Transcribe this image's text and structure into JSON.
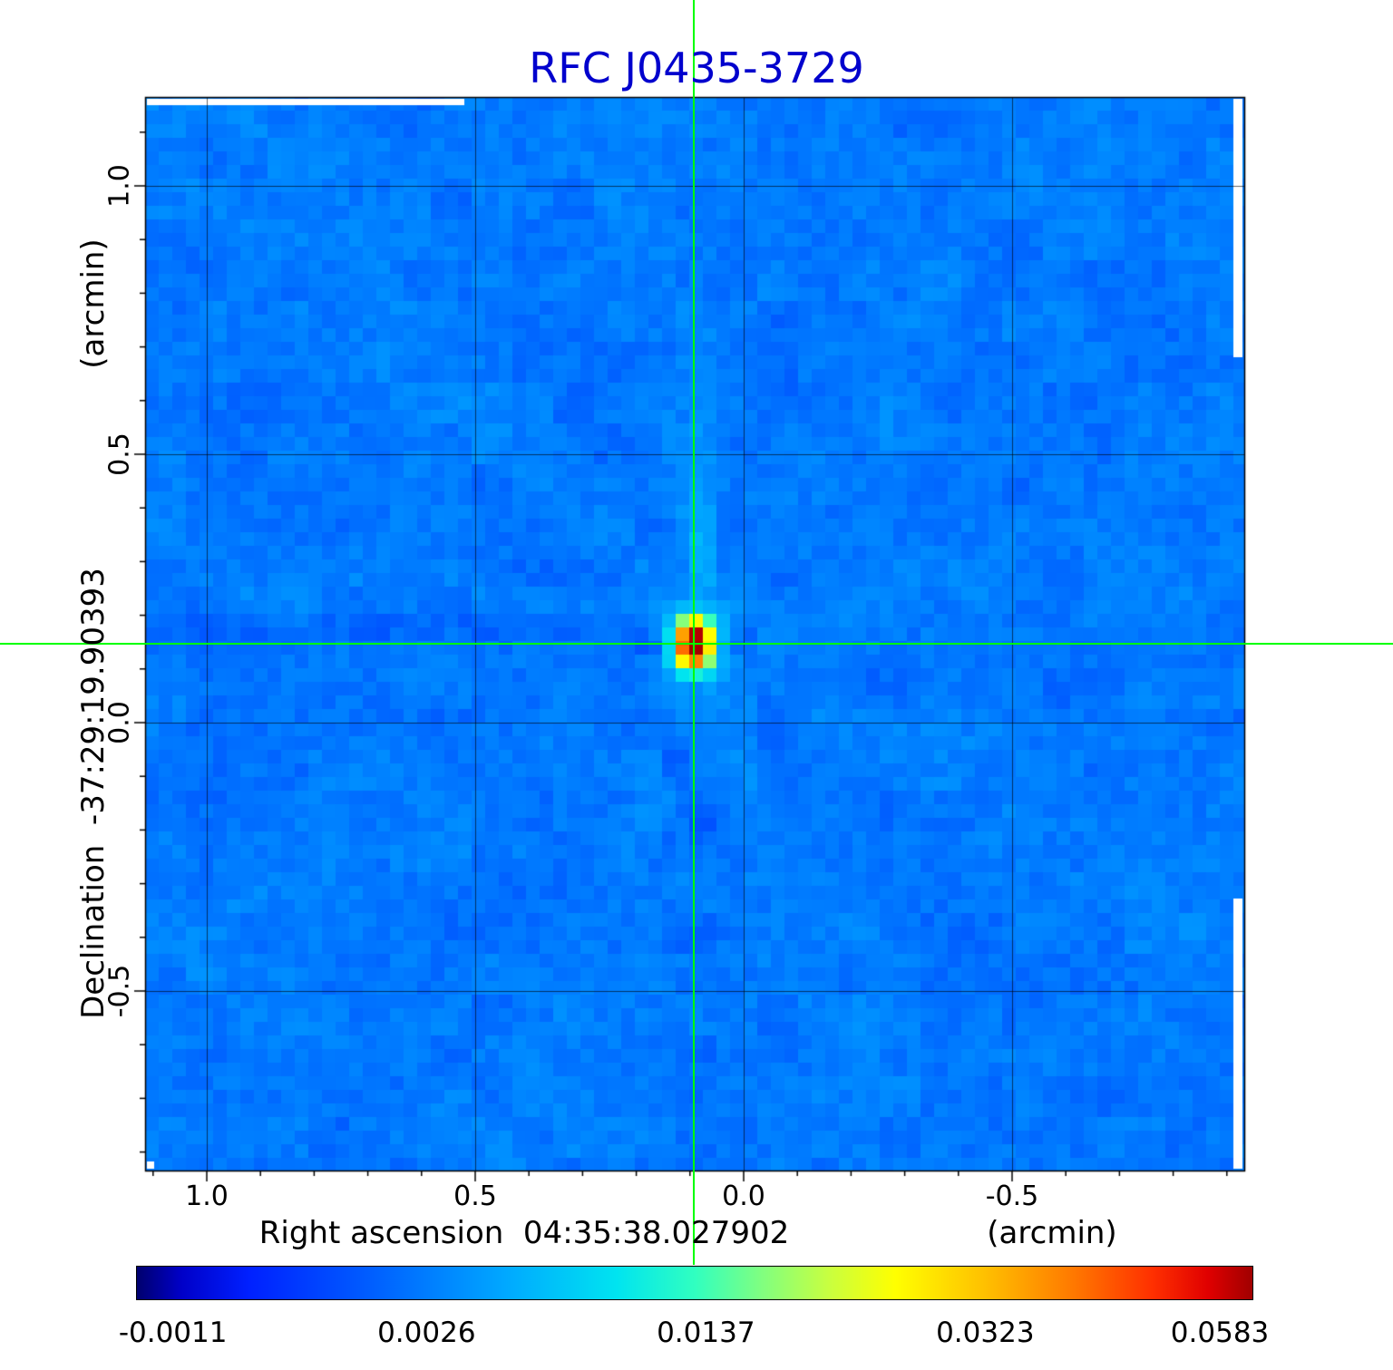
{
  "title": "RFC J0435-3729",
  "chart_data": {
    "type": "heatmap",
    "title": "RFC J0435-3729",
    "title_color": "#0000cd",
    "x_axis": {
      "label": "Right ascension  04:35:38.027902",
      "unit": "(arcmin)",
      "ticks": [
        "1.0",
        "0.5",
        "0.0",
        "-0.5"
      ],
      "tick_values": [
        1.0,
        0.5,
        0.0,
        -0.5
      ],
      "range": [
        1.115,
        -0.932
      ]
    },
    "y_axis": {
      "label": "Declination  -37:29:19.90393",
      "unit": "(arcmin)",
      "ticks": [
        "1.0",
        "0.5",
        "0.0",
        "-0.5"
      ],
      "tick_values": [
        1.0,
        0.5,
        0.0,
        -0.5
      ],
      "range": [
        -0.834,
        1.166
      ]
    },
    "grid": true,
    "crosshair": {
      "color": "#00ff00",
      "x_arcmin": 0.093,
      "y_arcmin": 0.147
    },
    "source": {
      "peak_value": 0.0583,
      "x_arcmin": 0.093,
      "y_arcmin": 0.147
    },
    "background_level": 0.0012,
    "colorbar": {
      "orientation": "horizontal",
      "ticks": [
        "-0.0011",
        "0.0026",
        "0.0137",
        "0.0323",
        "0.0583"
      ],
      "tick_values": [
        -0.0011,
        0.0026,
        0.0137,
        0.0323,
        0.0583
      ],
      "tick_positions": [
        0.033,
        0.26,
        0.51,
        0.76,
        0.97
      ],
      "gradient": [
        [
          0.0,
          "#00006e"
        ],
        [
          0.04,
          "#0000c8"
        ],
        [
          0.1,
          "#0020ff"
        ],
        [
          0.22,
          "#0064ff"
        ],
        [
          0.33,
          "#00a8ff"
        ],
        [
          0.43,
          "#00e4f0"
        ],
        [
          0.5,
          "#30ffc0"
        ],
        [
          0.56,
          "#80ff80"
        ],
        [
          0.62,
          "#c8ff40"
        ],
        [
          0.68,
          "#ffff00"
        ],
        [
          0.76,
          "#ffc000"
        ],
        [
          0.84,
          "#ff7800"
        ],
        [
          0.91,
          "#ff3000"
        ],
        [
          0.96,
          "#e00000"
        ],
        [
          1.0,
          "#a00000"
        ]
      ]
    }
  }
}
